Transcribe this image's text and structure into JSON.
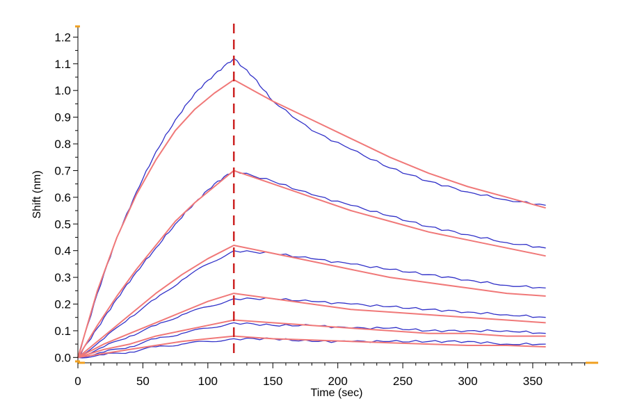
{
  "chart_data": {
    "type": "line",
    "title": "",
    "xlabel": "Time (sec)",
    "ylabel": "Shift (nm)",
    "xlim": [
      0,
      395
    ],
    "ylim": [
      -0.02,
      1.24
    ],
    "x_ticks": [
      "0",
      "50",
      "100",
      "150",
      "200",
      "250",
      "300",
      "350"
    ],
    "y_ticks": [
      "0.0",
      "0.1",
      "0.2",
      "0.3",
      "0.4",
      "0.5",
      "0.6",
      "0.7",
      "0.8",
      "0.9",
      "1.0",
      "1.1",
      "1.2"
    ],
    "grid": false,
    "legend": "none",
    "association_end_marker_x": 120,
    "series_colors": {
      "measured": "#3030c8",
      "fit": "#f07878",
      "marker": "#cc2222",
      "axis_caps": "#f0a020"
    },
    "series": [
      {
        "kind": "measured",
        "x": [
          0,
          15,
          30,
          45,
          60,
          75,
          90,
          105,
          120,
          135,
          150,
          180,
          210,
          240,
          270,
          300,
          330,
          360
        ],
        "values": [
          0.0,
          0.24,
          0.45,
          0.62,
          0.77,
          0.89,
          0.99,
          1.06,
          1.12,
          1.05,
          0.96,
          0.85,
          0.78,
          0.71,
          0.66,
          0.62,
          0.59,
          0.57
        ]
      },
      {
        "kind": "fit",
        "x": [
          0,
          15,
          30,
          45,
          60,
          75,
          90,
          105,
          120,
          135,
          150,
          180,
          210,
          240,
          270,
          300,
          330,
          360
        ],
        "values": [
          0.0,
          0.25,
          0.45,
          0.61,
          0.74,
          0.85,
          0.93,
          0.99,
          1.04,
          1.0,
          0.96,
          0.89,
          0.82,
          0.75,
          0.69,
          0.64,
          0.6,
          0.56
        ]
      },
      {
        "kind": "measured",
        "x": [
          0,
          15,
          30,
          45,
          60,
          75,
          90,
          105,
          120,
          150,
          180,
          210,
          240,
          270,
          300,
          330,
          360
        ],
        "values": [
          0.0,
          0.11,
          0.22,
          0.32,
          0.41,
          0.5,
          0.58,
          0.65,
          0.7,
          0.66,
          0.61,
          0.57,
          0.53,
          0.49,
          0.46,
          0.43,
          0.41
        ]
      },
      {
        "kind": "fit",
        "x": [
          0,
          15,
          30,
          45,
          60,
          75,
          90,
          105,
          120,
          150,
          180,
          210,
          240,
          270,
          300,
          330,
          360
        ],
        "values": [
          0.0,
          0.12,
          0.23,
          0.33,
          0.42,
          0.51,
          0.58,
          0.64,
          0.7,
          0.65,
          0.6,
          0.55,
          0.51,
          0.47,
          0.44,
          0.41,
          0.38
        ]
      },
      {
        "kind": "measured",
        "x": [
          0,
          20,
          40,
          60,
          80,
          100,
          120,
          150,
          180,
          210,
          240,
          270,
          300,
          330,
          360
        ],
        "values": [
          0.0,
          0.07,
          0.15,
          0.22,
          0.29,
          0.35,
          0.4,
          0.39,
          0.37,
          0.35,
          0.33,
          0.31,
          0.29,
          0.27,
          0.26
        ]
      },
      {
        "kind": "fit",
        "x": [
          0,
          20,
          40,
          60,
          80,
          100,
          120,
          150,
          180,
          210,
          240,
          270,
          300,
          330,
          360
        ],
        "values": [
          0.0,
          0.08,
          0.16,
          0.24,
          0.31,
          0.37,
          0.42,
          0.39,
          0.36,
          0.33,
          0.3,
          0.28,
          0.26,
          0.24,
          0.23
        ]
      },
      {
        "kind": "measured",
        "x": [
          0,
          20,
          40,
          60,
          80,
          100,
          120,
          150,
          180,
          210,
          240,
          270,
          300,
          330,
          360
        ],
        "values": [
          0.0,
          0.04,
          0.08,
          0.12,
          0.16,
          0.19,
          0.22,
          0.22,
          0.21,
          0.2,
          0.19,
          0.18,
          0.17,
          0.16,
          0.15
        ]
      },
      {
        "kind": "fit",
        "x": [
          0,
          20,
          40,
          60,
          80,
          100,
          120,
          150,
          180,
          210,
          240,
          270,
          300,
          330,
          360
        ],
        "values": [
          0.0,
          0.05,
          0.09,
          0.13,
          0.17,
          0.21,
          0.24,
          0.22,
          0.2,
          0.18,
          0.17,
          0.16,
          0.15,
          0.14,
          0.13
        ]
      },
      {
        "kind": "measured",
        "x": [
          0,
          20,
          40,
          60,
          80,
          100,
          120,
          150,
          180,
          210,
          240,
          270,
          300,
          330,
          360
        ],
        "values": [
          0.0,
          0.02,
          0.04,
          0.07,
          0.09,
          0.11,
          0.13,
          0.12,
          0.12,
          0.11,
          0.11,
          0.1,
          0.1,
          0.1,
          0.09
        ]
      },
      {
        "kind": "fit",
        "x": [
          0,
          20,
          40,
          60,
          80,
          100,
          120,
          150,
          180,
          210,
          240,
          270,
          300,
          330,
          360
        ],
        "values": [
          0.0,
          0.03,
          0.05,
          0.08,
          0.1,
          0.12,
          0.14,
          0.13,
          0.12,
          0.11,
          0.1,
          0.09,
          0.09,
          0.08,
          0.08
        ]
      },
      {
        "kind": "measured",
        "x": [
          0,
          20,
          40,
          60,
          80,
          100,
          120,
          150,
          180,
          210,
          240,
          270,
          300,
          330,
          360
        ],
        "values": [
          0.0,
          0.01,
          0.02,
          0.04,
          0.05,
          0.06,
          0.07,
          0.07,
          0.06,
          0.06,
          0.06,
          0.06,
          0.06,
          0.05,
          0.05
        ]
      },
      {
        "kind": "fit",
        "x": [
          0,
          20,
          40,
          60,
          80,
          100,
          120,
          150,
          180,
          210,
          240,
          270,
          300,
          330,
          360
        ],
        "values": [
          0.0,
          0.015,
          0.03,
          0.045,
          0.06,
          0.07,
          0.08,
          0.07,
          0.065,
          0.06,
          0.055,
          0.05,
          0.045,
          0.045,
          0.04
        ]
      }
    ]
  }
}
